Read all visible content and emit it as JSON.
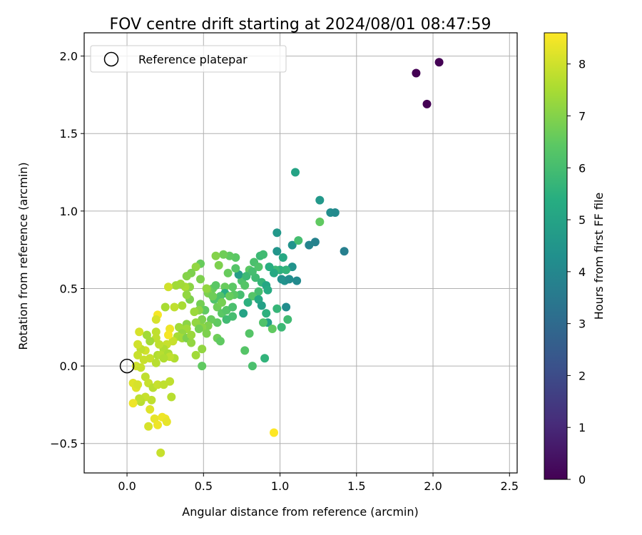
{
  "chart_data": {
    "type": "scatter",
    "title": "FOV centre drift starting at 2024/08/01 08:47:59",
    "xlabel": "Angular distance from reference (arcmin)",
    "ylabel": "Rotation from reference (arcmin)",
    "xlim": [
      -0.28,
      2.55
    ],
    "ylim": [
      -0.69,
      2.15
    ],
    "xticks": [
      0.0,
      0.5,
      1.0,
      1.5,
      2.0,
      2.5
    ],
    "xtick_labels": [
      "0.0",
      "0.5",
      "1.0",
      "1.5",
      "2.0",
      "2.5"
    ],
    "yticks": [
      -0.5,
      0.0,
      0.5,
      1.0,
      1.5,
      2.0
    ],
    "ytick_labels": [
      "−0.5",
      "0.0",
      "0.5",
      "1.0",
      "1.5",
      "2.0"
    ],
    "grid": true,
    "legend": {
      "placement": "top-left",
      "entries": [
        "Reference platepar"
      ]
    },
    "reference_point": {
      "x": 0.0,
      "y": 0.0
    },
    "colorbar": {
      "label": "Hours from first FF file",
      "colormap": "viridis",
      "range": [
        0,
        8.6
      ],
      "ticks": [
        0,
        1,
        2,
        3,
        4,
        5,
        6,
        7,
        8
      ],
      "tick_labels": [
        "0",
        "1",
        "2",
        "3",
        "4",
        "5",
        "6",
        "7",
        "8"
      ]
    },
    "points": [
      [
        1.89,
        1.89,
        0.0
      ],
      [
        2.04,
        1.96,
        0.0
      ],
      [
        1.96,
        1.69,
        0.0
      ],
      [
        1.1,
        1.25,
        5.0
      ],
      [
        1.26,
        1.07,
        4.6
      ],
      [
        1.33,
        0.99,
        4.2
      ],
      [
        1.36,
        0.99,
        4.1
      ],
      [
        1.42,
        0.74,
        3.7
      ],
      [
        1.23,
        0.8,
        3.8
      ],
      [
        1.19,
        0.78,
        3.9
      ],
      [
        1.08,
        0.78,
        4.4
      ],
      [
        1.12,
        0.81,
        6.0
      ],
      [
        1.26,
        0.93,
        6.5
      ],
      [
        0.98,
        0.86,
        4.6
      ],
      [
        0.98,
        0.74,
        4.5
      ],
      [
        1.02,
        0.7,
        5.2
      ],
      [
        1.0,
        0.62,
        5.5
      ],
      [
        0.97,
        0.62,
        5.8
      ],
      [
        1.01,
        0.56,
        4.3
      ],
      [
        1.03,
        0.55,
        4.4
      ],
      [
        1.06,
        0.56,
        4.2
      ],
      [
        1.11,
        0.55,
        4.1
      ],
      [
        1.08,
        0.64,
        4.4
      ],
      [
        1.04,
        0.62,
        5.6
      ],
      [
        0.96,
        0.6,
        5.2
      ],
      [
        0.93,
        0.64,
        5.4
      ],
      [
        0.87,
        0.71,
        5.8
      ],
      [
        0.89,
        0.72,
        5.9
      ],
      [
        0.83,
        0.67,
        6.1
      ],
      [
        0.8,
        0.62,
        6.4
      ],
      [
        0.84,
        0.57,
        5.9
      ],
      [
        0.88,
        0.54,
        5.7
      ],
      [
        0.91,
        0.52,
        5.1
      ],
      [
        0.92,
        0.49,
        5.3
      ],
      [
        0.86,
        0.48,
        6.0
      ],
      [
        0.82,
        0.45,
        6.3
      ],
      [
        0.86,
        0.43,
        5.2
      ],
      [
        0.88,
        0.39,
        4.9
      ],
      [
        0.91,
        0.34,
        5.5
      ],
      [
        0.92,
        0.28,
        4.9
      ],
      [
        0.89,
        0.28,
        6.2
      ],
      [
        0.79,
        0.41,
        5.5
      ],
      [
        0.76,
        0.34,
        5.0
      ],
      [
        0.75,
        0.55,
        6.2
      ],
      [
        0.73,
        0.59,
        4.8
      ],
      [
        0.71,
        0.63,
        6.3
      ],
      [
        0.71,
        0.7,
        6.4
      ],
      [
        0.67,
        0.71,
        6.5
      ],
      [
        0.63,
        0.72,
        6.7
      ],
      [
        0.58,
        0.71,
        7.0
      ],
      [
        0.6,
        0.65,
        6.9
      ],
      [
        0.66,
        0.6,
        6.6
      ],
      [
        0.69,
        0.51,
        6.4
      ],
      [
        0.64,
        0.51,
        6.6
      ],
      [
        0.64,
        0.47,
        5.4
      ],
      [
        0.61,
        0.45,
        6.2
      ],
      [
        0.56,
        0.5,
        6.6
      ],
      [
        0.53,
        0.47,
        6.9
      ],
      [
        0.52,
        0.5,
        7.2
      ],
      [
        0.48,
        0.56,
        6.9
      ],
      [
        0.48,
        0.66,
        6.6
      ],
      [
        0.45,
        0.64,
        7.2
      ],
      [
        0.42,
        0.6,
        6.9
      ],
      [
        0.39,
        0.58,
        7.0
      ],
      [
        0.41,
        0.51,
        7.1
      ],
      [
        0.38,
        0.51,
        7.5
      ],
      [
        0.35,
        0.53,
        7.4
      ],
      [
        0.32,
        0.52,
        7.4
      ],
      [
        0.27,
        0.51,
        8.0
      ],
      [
        0.48,
        0.4,
        6.8
      ],
      [
        0.51,
        0.36,
        6.5
      ],
      [
        0.47,
        0.36,
        7.1
      ],
      [
        0.44,
        0.35,
        7.3
      ],
      [
        0.41,
        0.43,
        6.9
      ],
      [
        0.39,
        0.46,
        7.2
      ],
      [
        0.36,
        0.39,
        7.5
      ],
      [
        0.31,
        0.38,
        7.8
      ],
      [
        0.25,
        0.38,
        7.5
      ],
      [
        0.57,
        0.43,
        6.2
      ],
      [
        0.59,
        0.38,
        6.7
      ],
      [
        0.62,
        0.34,
        6.4
      ],
      [
        0.65,
        0.36,
        6.3
      ],
      [
        0.69,
        0.38,
        6.1
      ],
      [
        0.69,
        0.32,
        6.0
      ],
      [
        0.65,
        0.3,
        5.9
      ],
      [
        0.59,
        0.28,
        6.5
      ],
      [
        0.55,
        0.3,
        6.6
      ],
      [
        0.53,
        0.26,
        6.9
      ],
      [
        0.49,
        0.25,
        7.1
      ],
      [
        0.49,
        0.3,
        6.9
      ],
      [
        0.45,
        0.28,
        7.2
      ],
      [
        0.39,
        0.27,
        7.1
      ],
      [
        0.39,
        0.24,
        7.4
      ],
      [
        0.34,
        0.25,
        7.4
      ],
      [
        0.36,
        0.21,
        7.2
      ],
      [
        0.33,
        0.19,
        7.5
      ],
      [
        0.36,
        0.18,
        7.4
      ],
      [
        0.39,
        0.18,
        6.9
      ],
      [
        0.42,
        0.2,
        7.3
      ],
      [
        0.42,
        0.15,
        7.2
      ],
      [
        0.47,
        0.24,
        6.8
      ],
      [
        0.52,
        0.21,
        6.9
      ],
      [
        0.59,
        0.18,
        6.7
      ],
      [
        0.61,
        0.16,
        6.5
      ],
      [
        0.49,
        0.11,
        7.2
      ],
      [
        0.49,
        0.0,
        6.5
      ],
      [
        0.45,
        0.07,
        7.4
      ],
      [
        0.3,
        0.16,
        7.9
      ],
      [
        0.28,
        0.24,
        8.4
      ],
      [
        0.27,
        0.2,
        8.5
      ],
      [
        0.26,
        0.14,
        7.9
      ],
      [
        0.24,
        0.11,
        7.6
      ],
      [
        0.21,
        0.14,
        7.8
      ],
      [
        0.19,
        0.18,
        7.8
      ],
      [
        0.19,
        0.22,
        7.8
      ],
      [
        0.2,
        0.33,
        8.5
      ],
      [
        0.19,
        0.3,
        8.1
      ],
      [
        0.15,
        0.16,
        7.4
      ],
      [
        0.13,
        0.2,
        7.4
      ],
      [
        0.12,
        0.1,
        8.0
      ],
      [
        0.09,
        0.11,
        7.8
      ],
      [
        0.08,
        0.22,
        8.1
      ],
      [
        0.07,
        0.14,
        8.0
      ],
      [
        0.07,
        0.07,
        7.9
      ],
      [
        0.06,
        0.0,
        8.0
      ],
      [
        0.09,
        -0.01,
        7.9
      ],
      [
        0.11,
        0.04,
        7.9
      ],
      [
        0.15,
        0.05,
        7.9
      ],
      [
        0.19,
        0.02,
        7.7
      ],
      [
        0.2,
        0.07,
        7.6
      ],
      [
        0.22,
        0.07,
        7.7
      ],
      [
        0.27,
        0.08,
        7.5
      ],
      [
        0.31,
        0.05,
        7.6
      ],
      [
        0.28,
        0.06,
        7.8
      ],
      [
        0.24,
        0.05,
        7.6
      ],
      [
        0.12,
        -0.07,
        7.8
      ],
      [
        0.14,
        -0.11,
        7.9
      ],
      [
        0.17,
        -0.14,
        7.7
      ],
      [
        0.2,
        -0.12,
        7.9
      ],
      [
        0.24,
        -0.12,
        7.8
      ],
      [
        0.16,
        -0.22,
        7.8
      ],
      [
        0.12,
        -0.2,
        7.9
      ],
      [
        0.09,
        -0.23,
        7.7
      ],
      [
        0.08,
        -0.21,
        7.8
      ],
      [
        0.06,
        -0.14,
        8.2
      ],
      [
        0.04,
        -0.11,
        8.2
      ],
      [
        0.07,
        -0.12,
        8.1
      ],
      [
        0.04,
        -0.24,
        8.4
      ],
      [
        0.15,
        -0.28,
        8.2
      ],
      [
        0.18,
        -0.34,
        8.3
      ],
      [
        0.23,
        -0.33,
        8.4
      ],
      [
        0.25,
        -0.34,
        8.4
      ],
      [
        0.26,
        -0.36,
        8.3
      ],
      [
        0.2,
        -0.38,
        8.4
      ],
      [
        0.14,
        -0.39,
        8.1
      ],
      [
        0.28,
        -0.1,
        7.8
      ],
      [
        0.29,
        -0.2,
        7.7
      ],
      [
        0.22,
        -0.56,
        7.9
      ],
      [
        0.96,
        -0.43,
        8.6
      ],
      [
        0.77,
        0.1,
        6.3
      ],
      [
        0.82,
        0.0,
        6.1
      ],
      [
        0.9,
        0.05,
        5.6
      ],
      [
        0.8,
        0.21,
        6.3
      ],
      [
        0.95,
        0.24,
        6.5
      ],
      [
        1.01,
        0.25,
        5.8
      ],
      [
        1.05,
        0.3,
        5.9
      ],
      [
        1.04,
        0.38,
        4.2
      ],
      [
        0.98,
        0.37,
        5.7
      ],
      [
        0.77,
        0.52,
        6.3
      ],
      [
        0.74,
        0.46,
        6.0
      ],
      [
        0.7,
        0.46,
        6.4
      ],
      [
        0.67,
        0.45,
        6.6
      ],
      [
        0.62,
        0.41,
        6.8
      ],
      [
        0.56,
        0.45,
        6.7
      ],
      [
        0.58,
        0.52,
        6.4
      ],
      [
        0.78,
        0.58,
        5.8
      ],
      [
        0.82,
        0.61,
        6.0
      ],
      [
        0.86,
        0.64,
        6.2
      ]
    ]
  }
}
